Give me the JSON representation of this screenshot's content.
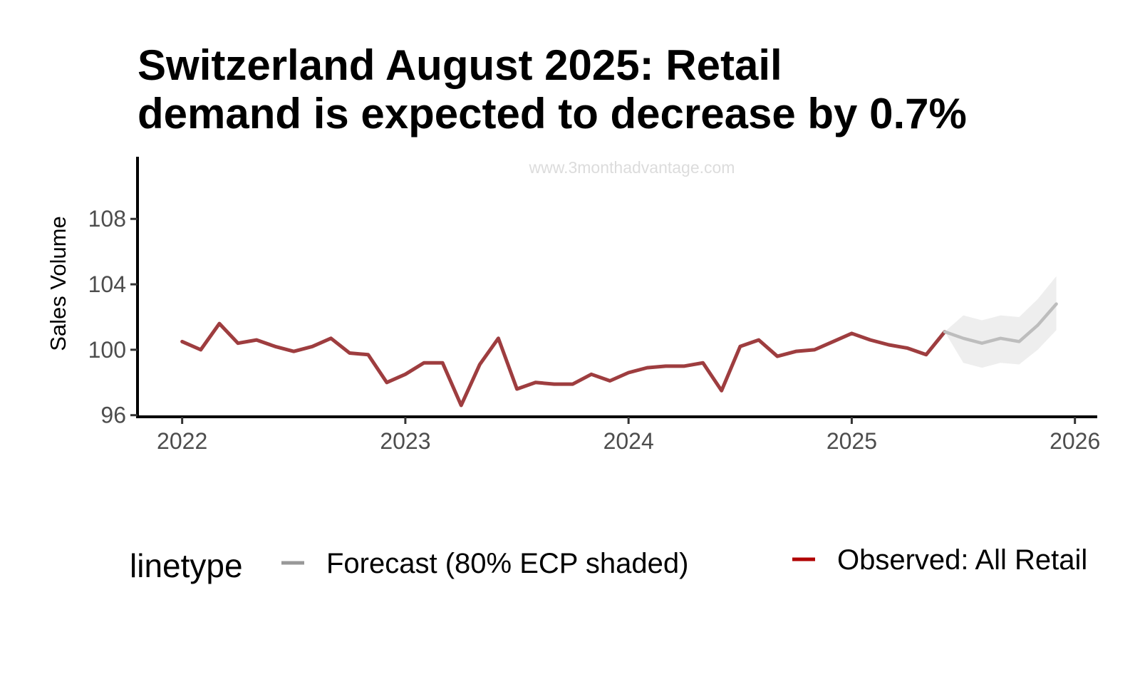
{
  "chart_data": {
    "type": "line",
    "title_lines": [
      "Switzerland August 2025: Retail",
      "demand is expected to decrease by 0.7%"
    ],
    "watermark": "www.3monthadvantage.com",
    "xlabel": "",
    "ylabel": "Sales Volume",
    "xlim": [
      2021.8,
      2026.1
    ],
    "ylim": [
      95.9,
      111.8
    ],
    "x_ticks": [
      2022,
      2023,
      2024,
      2025,
      2026
    ],
    "x_tick_labels": [
      "2022",
      "2023",
      "2024",
      "2025",
      "2026"
    ],
    "y_ticks": [
      96,
      100,
      104,
      108
    ],
    "y_tick_labels": [
      "96",
      "100",
      "104",
      "108"
    ],
    "grid": false,
    "legend": {
      "title": "linetype",
      "placement": "bottom",
      "entries": [
        {
          "label": "Forecast (80% ECP shaded)",
          "color": "#999999"
        },
        {
          "label": "Observed: All Retail",
          "color": "#b00000"
        }
      ]
    },
    "series": [
      {
        "name": "Observed: All Retail",
        "color": "#9e3d3f",
        "x": [
          "2022-01",
          "2022-02",
          "2022-03",
          "2022-04",
          "2022-05",
          "2022-06",
          "2022-07",
          "2022-08",
          "2022-09",
          "2022-10",
          "2022-11",
          "2022-12",
          "2023-01",
          "2023-02",
          "2023-03",
          "2023-04",
          "2023-05",
          "2023-06",
          "2023-07",
          "2023-08",
          "2023-09",
          "2023-10",
          "2023-11",
          "2023-12",
          "2024-01",
          "2024-02",
          "2024-03",
          "2024-04",
          "2024-05",
          "2024-06",
          "2024-07",
          "2024-08",
          "2024-09",
          "2024-10",
          "2024-11",
          "2024-12",
          "2025-01",
          "2025-02",
          "2025-03",
          "2025-04",
          "2025-05",
          "2025-06"
        ],
        "values": [
          100.5,
          100.0,
          101.6,
          100.4,
          100.6,
          100.2,
          99.9,
          100.2,
          100.7,
          99.8,
          99.7,
          98.0,
          98.5,
          99.2,
          99.2,
          96.6,
          99.1,
          100.7,
          97.6,
          98.0,
          97.9,
          97.9,
          98.5,
          98.1,
          98.6,
          98.9,
          99.0,
          99.0,
          99.2,
          97.5,
          100.2,
          100.6,
          99.6,
          99.9,
          100.0,
          100.5,
          101.0,
          100.6,
          100.3,
          100.1,
          99.7,
          101.1
        ]
      },
      {
        "name": "Forecast (80% ECP shaded)",
        "color": "#bdbdbd",
        "x": [
          "2025-06",
          "2025-07",
          "2025-08",
          "2025-09",
          "2025-10",
          "2025-11",
          "2025-12"
        ],
        "values": [
          101.1,
          100.7,
          100.4,
          100.7,
          100.5,
          101.5,
          102.8
        ],
        "lower": [
          101.1,
          99.2,
          98.9,
          99.2,
          99.1,
          100.0,
          101.2
        ],
        "upper": [
          101.1,
          102.1,
          101.8,
          102.1,
          102.0,
          103.1,
          104.5
        ]
      }
    ]
  }
}
